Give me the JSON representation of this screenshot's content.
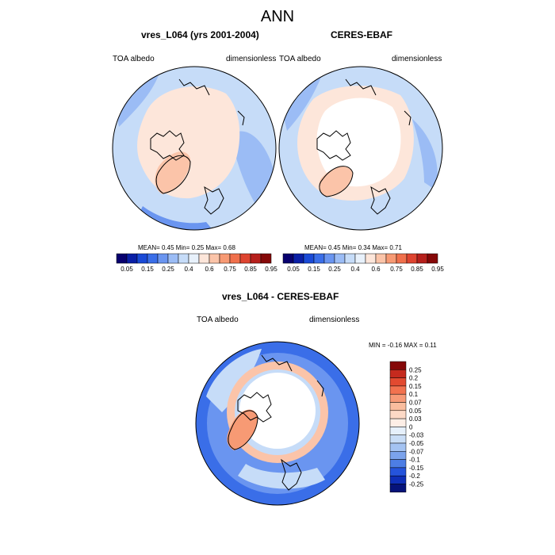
{
  "title": "ANN",
  "panels": [
    {
      "title": "vres_L064 (yrs 2001-2004)",
      "left_label": "TOA albedo",
      "right_label": "dimensionless",
      "stats": "MEAN=   0.45  Min=   0.25  Max=   0.68"
    },
    {
      "title": "CERES-EBAF",
      "left_label": "TOA albedo",
      "right_label": "dimensionless",
      "stats": "MEAN=   0.45  Min=   0.34  Max=   0.71"
    },
    {
      "title": "vres_L064 - CERES-EBAF",
      "left_label": "TOA albedo",
      "right_label": "dimensionless",
      "stats": "MIN =  -0.16 MAX =   0.11"
    }
  ],
  "colorbar_horizontal": {
    "colors": [
      "#08006e",
      "#0a1fa6",
      "#1a4ad6",
      "#3a6ee8",
      "#6a95f0",
      "#9bbcf5",
      "#c6dcf8",
      "#e8f1fb",
      "#fde6da",
      "#fbc4a9",
      "#f79a74",
      "#f0704c",
      "#de4430",
      "#b6201c",
      "#850808"
    ],
    "labels": [
      "0.05",
      "0.15",
      "0.25",
      "0.4",
      "0.6",
      "0.75",
      "0.85",
      "0.95"
    ]
  },
  "colorbar_vertical": {
    "colors": [
      "#850808",
      "#c52a1e",
      "#e24a30",
      "#f2724f",
      "#f79a77",
      "#fabd9e",
      "#fcd9c6",
      "#fdeee6",
      "#e6f0fb",
      "#c9ddf6",
      "#a4c3f2",
      "#7ba3ec",
      "#4d7ee5",
      "#2554dc",
      "#0f2fb8",
      "#06137a"
    ],
    "labels": [
      "0.25",
      "0.2",
      "0.15",
      "0.1",
      "0.07",
      "0.05",
      "0.03",
      "0",
      "-0.03",
      "-0.05",
      "-0.07",
      "-0.1",
      "-0.15",
      "-0.2",
      "-0.25"
    ]
  },
  "map_colors": {
    "ocean_model": "#c6dcf8",
    "ocean_deep": "#9bbcf5",
    "ocean_low": "#6a95f0",
    "arctic_model": "#fde6da",
    "ice_model": "#fbc4a9",
    "arctic_obs": "#ffffff",
    "diff_base": "#c6dcf8",
    "diff_blue": "#6a95f0",
    "diff_strong": "#3a6ee8",
    "diff_warm": "#fbc4a9",
    "diff_warm_strong": "#f79a74",
    "diff_center": "#ffffff"
  }
}
